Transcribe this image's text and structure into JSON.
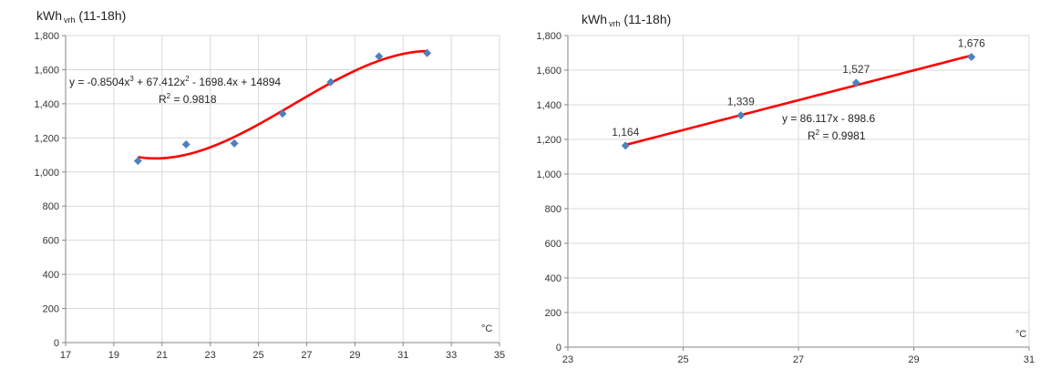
{
  "chart_data": [
    {
      "type": "scatter",
      "title_main": "kWh",
      "title_sub": "vrh",
      "title_suffix": " (11-18h)",
      "xlabel": "°C",
      "ylabel": "",
      "xlim": [
        17,
        35
      ],
      "ylim": [
        0,
        1800
      ],
      "x_ticks": [
        17,
        19,
        21,
        23,
        25,
        27,
        29,
        31,
        33,
        35
      ],
      "y_ticks": [
        0,
        200,
        400,
        600,
        800,
        1000,
        1200,
        1400,
        1600,
        1800
      ],
      "y_tick_labels": [
        "0",
        "200",
        "400",
        "600",
        "800",
        "1,000",
        "1,200",
        "1,400",
        "1,600",
        "1,800"
      ],
      "grid": true,
      "series": [
        {
          "values": [
            {
              "x": 20,
              "y": 1065
            },
            {
              "x": 22,
              "y": 1162
            },
            {
              "x": 24,
              "y": 1168
            },
            {
              "x": 26,
              "y": 1342
            },
            {
              "x": 28,
              "y": 1527
            },
            {
              "x": 30,
              "y": 1678
            },
            {
              "x": 32,
              "y": 1697
            }
          ],
          "color": "#4f81bd"
        }
      ],
      "trendline": {
        "type": "polynomial",
        "coefficients": [
          -0.8504,
          67.412,
          -1698.4,
          14894
        ],
        "x_range": [
          20,
          32
        ],
        "color": "#ff0000",
        "equation_parts": [
          "y = -0.8504x",
          "3",
          " + 67.412x",
          "2",
          " - 1698.4x + 14894"
        ],
        "r2_parts": [
          "R",
          "2",
          " = 0.9818"
        ]
      },
      "data_labels": []
    },
    {
      "type": "scatter",
      "title_main": "kWh",
      "title_sub": "vrh",
      "title_suffix": " (11-18h)",
      "xlabel": "°C",
      "ylabel": "",
      "xlim": [
        23,
        31
      ],
      "ylim": [
        0,
        1800
      ],
      "x_ticks": [
        23,
        25,
        27,
        29,
        31
      ],
      "y_ticks": [
        0,
        200,
        400,
        600,
        800,
        1000,
        1200,
        1400,
        1600,
        1800
      ],
      "y_tick_labels": [
        "0",
        "200",
        "400",
        "600",
        "800",
        "1,000",
        "1,200",
        "1,400",
        "1,600",
        "1,800"
      ],
      "grid": true,
      "series": [
        {
          "values": [
            {
              "x": 24,
              "y": 1164
            },
            {
              "x": 26,
              "y": 1339
            },
            {
              "x": 28,
              "y": 1527
            },
            {
              "x": 30,
              "y": 1676
            }
          ],
          "color": "#4f81bd"
        }
      ],
      "trendline": {
        "type": "linear",
        "coefficients": [
          86.117,
          -898.6
        ],
        "x_range": [
          24,
          30
        ],
        "color": "#ff0000",
        "equation_parts": [
          "y = 86.117x - 898.6"
        ],
        "r2_parts": [
          "R",
          "2",
          " = 0.9981"
        ]
      },
      "data_labels": [
        "1,164",
        "1,339",
        "1,527",
        "1,676"
      ]
    }
  ]
}
